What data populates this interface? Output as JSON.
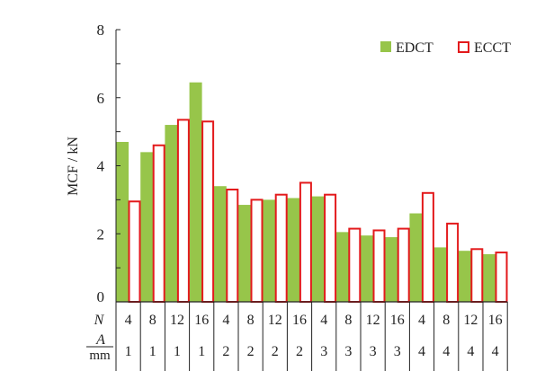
{
  "chart_data": {
    "type": "bar",
    "title": "",
    "ylabel": "MCF / kN",
    "xlabel": "",
    "ylim": [
      0,
      8
    ],
    "yticks": [
      0,
      2,
      4,
      6,
      8
    ],
    "row_labels": {
      "n": "N",
      "a_num": "A",
      "a_den": "mm"
    },
    "categories_n": [
      "4",
      "8",
      "12",
      "16",
      "4",
      "8",
      "12",
      "16",
      "4",
      "8",
      "12",
      "16",
      "4",
      "8",
      "12",
      "16"
    ],
    "categories_a": [
      "1",
      "1",
      "1",
      "1",
      "2",
      "2",
      "2",
      "2",
      "3",
      "3",
      "3",
      "3",
      "4",
      "4",
      "4",
      "4"
    ],
    "series": [
      {
        "name": "EDCT",
        "color": "#97c54a",
        "style": "filled",
        "values": [
          4.7,
          4.4,
          5.2,
          6.45,
          3.4,
          2.85,
          3.0,
          3.05,
          3.1,
          2.05,
          1.95,
          1.9,
          2.6,
          1.6,
          1.5,
          1.4
        ]
      },
      {
        "name": "ECCT",
        "color": "#e31a1c",
        "style": "outline",
        "values": [
          2.95,
          4.6,
          5.35,
          5.3,
          3.3,
          3.0,
          3.15,
          3.5,
          3.15,
          2.15,
          2.1,
          2.15,
          3.2,
          2.3,
          1.55,
          1.45
        ]
      }
    ],
    "legend": "top-right",
    "grid": false
  }
}
